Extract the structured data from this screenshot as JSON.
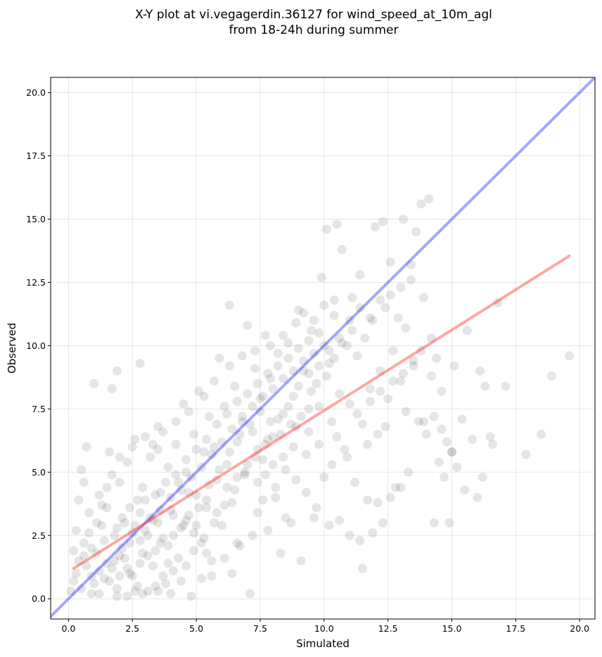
{
  "chart_data": {
    "type": "scatter",
    "title_lines": [
      "X-Y plot at vi.vegagerdin.36127 for wind_speed_at_10m_agl",
      "from 18-24h during summer"
    ],
    "xlabel": "Simulated",
    "ylabel": "Observed",
    "xlim": [
      -0.7,
      20.6
    ],
    "ylim": [
      -0.8,
      20.6
    ],
    "x_ticks": [
      0.0,
      2.5,
      5.0,
      7.5,
      10.0,
      12.5,
      15.0,
      17.5,
      20.0
    ],
    "y_ticks": [
      0.0,
      2.5,
      5.0,
      7.5,
      10.0,
      12.5,
      15.0,
      17.5,
      20.0
    ],
    "x_tick_labels": [
      "0.0",
      "2.5",
      "5.0",
      "7.5",
      "10.0",
      "12.5",
      "15.0",
      "17.5",
      "20.0"
    ],
    "y_tick_labels": [
      "0.0",
      "2.5",
      "5.0",
      "7.5",
      "10.0",
      "12.5",
      "15.0",
      "17.5",
      "20.0"
    ],
    "grid": true,
    "point_color": "#000000",
    "point_alpha": 0.1,
    "identity_line": {
      "color": "#0000ff",
      "alpha": 0.35,
      "from": [
        -0.7,
        -0.7
      ],
      "to": [
        20.6,
        20.6
      ]
    },
    "fit_line": {
      "color": "#ff0000",
      "alpha": 0.35,
      "from": [
        0.2,
        1.2
      ],
      "to": [
        19.6,
        13.55
      ]
    },
    "points": [
      [
        0.7,
        6.0
      ],
      [
        1.0,
        8.5
      ],
      [
        1.7,
        8.3
      ],
      [
        1.9,
        9.0
      ],
      [
        2.8,
        9.3
      ],
      [
        0.5,
        5.1
      ],
      [
        0.3,
        2.7
      ],
      [
        0.2,
        0.7
      ],
      [
        0.4,
        1.5
      ],
      [
        0.6,
        2.2
      ],
      [
        0.8,
        3.4
      ],
      [
        0.9,
        0.2
      ],
      [
        1.1,
        1.8
      ],
      [
        1.2,
        4.1
      ],
      [
        1.3,
        2.9
      ],
      [
        1.4,
        0.8
      ],
      [
        1.5,
        3.6
      ],
      [
        1.6,
        5.8
      ],
      [
        1.7,
        1.2
      ],
      [
        1.8,
        2.5
      ],
      [
        1.9,
        0.4
      ],
      [
        2.0,
        4.6
      ],
      [
        2.1,
        3.2
      ],
      [
        2.2,
        1.6
      ],
      [
        2.3,
        5.4
      ],
      [
        2.4,
        2.2
      ],
      [
        2.5,
        0.9
      ],
      [
        2.6,
        6.3
      ],
      [
        2.7,
        3.9
      ],
      [
        2.8,
        1.4
      ],
      [
        2.9,
        4.4
      ],
      [
        3.0,
        2.7
      ],
      [
        3.1,
        0.3
      ],
      [
        3.2,
        5.6
      ],
      [
        3.3,
        3.1
      ],
      [
        3.4,
        1.9
      ],
      [
        3.5,
        6.8
      ],
      [
        3.6,
        4.2
      ],
      [
        3.7,
        2.4
      ],
      [
        3.8,
        0.6
      ],
      [
        3.9,
        5.2
      ],
      [
        4.0,
        3.5
      ],
      [
        4.1,
        1.1
      ],
      [
        4.2,
        6.1
      ],
      [
        4.3,
        4.6
      ],
      [
        4.4,
        2.8
      ],
      [
        4.5,
        7.7
      ],
      [
        4.6,
        5.0
      ],
      [
        4.7,
        3.3
      ],
      [
        4.8,
        0.1
      ],
      [
        4.9,
        6.5
      ],
      [
        5.0,
        4.1
      ],
      [
        5.1,
        8.2
      ],
      [
        5.2,
        2.2
      ],
      [
        5.3,
        5.8
      ],
      [
        5.4,
        3.6
      ],
      [
        5.5,
        7.2
      ],
      [
        5.6,
        1.5
      ],
      [
        5.7,
        6.0
      ],
      [
        5.8,
        4.7
      ],
      [
        5.9,
        9.5
      ],
      [
        6.0,
        2.9
      ],
      [
        6.1,
        7.6
      ],
      [
        6.2,
        5.3
      ],
      [
        6.3,
        11.6
      ],
      [
        6.4,
        3.8
      ],
      [
        6.5,
        8.4
      ],
      [
        6.6,
        6.2
      ],
      [
        6.7,
        2.1
      ],
      [
        6.8,
        7.0
      ],
      [
        6.9,
        4.9
      ],
      [
        7.0,
        10.8
      ],
      [
        7.1,
        0.2
      ],
      [
        7.2,
        6.6
      ],
      [
        7.3,
        9.1
      ],
      [
        7.4,
        3.4
      ],
      [
        7.5,
        7.9
      ],
      [
        7.6,
        5.5
      ],
      [
        7.7,
        10.4
      ],
      [
        7.8,
        2.7
      ],
      [
        7.9,
        8.7
      ],
      [
        8.0,
        6.4
      ],
      [
        8.1,
        4.0
      ],
      [
        8.2,
        9.7
      ],
      [
        8.3,
        1.8
      ],
      [
        8.4,
        7.3
      ],
      [
        8.5,
        5.1
      ],
      [
        8.6,
        10.1
      ],
      [
        8.7,
        3.0
      ],
      [
        8.8,
        8.0
      ],
      [
        8.9,
        6.8
      ],
      [
        9.0,
        11.4
      ],
      [
        9.1,
        1.5
      ],
      [
        9.2,
        9.0
      ],
      [
        9.3,
        5.7
      ],
      [
        9.4,
        7.5
      ],
      [
        9.5,
        10.6
      ],
      [
        9.6,
        3.2
      ],
      [
        9.7,
        8.5
      ],
      [
        9.8,
        6.1
      ],
      [
        9.9,
        12.7
      ],
      [
        10.0,
        4.8
      ],
      [
        10.1,
        14.6
      ],
      [
        10.2,
        9.3
      ],
      [
        10.3,
        7.0
      ],
      [
        10.4,
        11.2
      ],
      [
        10.5,
        14.8
      ],
      [
        10.6,
        8.1
      ],
      [
        10.7,
        13.8
      ],
      [
        10.8,
        5.9
      ],
      [
        10.9,
        10.0
      ],
      [
        11.0,
        7.7
      ],
      [
        11.1,
        11.9
      ],
      [
        11.2,
        4.6
      ],
      [
        11.3,
        9.6
      ],
      [
        11.4,
        12.8
      ],
      [
        11.5,
        6.9
      ],
      [
        11.6,
        10.3
      ],
      [
        11.7,
        3.9
      ],
      [
        11.8,
        8.3
      ],
      [
        11.9,
        11.0
      ],
      [
        12.0,
        14.7
      ],
      [
        12.1,
        6.5
      ],
      [
        12.2,
        9.0
      ],
      [
        12.3,
        14.9
      ],
      [
        12.4,
        11.5
      ],
      [
        12.5,
        7.9
      ],
      [
        12.6,
        13.3
      ],
      [
        12.7,
        9.8
      ],
      [
        12.8,
        4.4
      ],
      [
        12.9,
        11.1
      ],
      [
        13.0,
        8.6
      ],
      [
        13.1,
        15.0
      ],
      [
        13.2,
        10.7
      ],
      [
        13.3,
        5.0
      ],
      [
        13.4,
        12.6
      ],
      [
        13.5,
        9.2
      ],
      [
        13.6,
        14.5
      ],
      [
        13.7,
        7.0
      ],
      [
        13.8,
        15.6
      ],
      [
        13.9,
        11.9
      ],
      [
        14.0,
        6.5
      ],
      [
        14.1,
        15.8
      ],
      [
        14.2,
        8.8
      ],
      [
        14.3,
        3.0
      ],
      [
        14.4,
        9.5
      ],
      [
        14.5,
        5.4
      ],
      [
        14.6,
        6.7
      ],
      [
        14.7,
        4.8
      ],
      [
        14.8,
        6.2
      ],
      [
        14.9,
        3.0
      ],
      [
        15.0,
        5.8
      ],
      [
        15.1,
        9.2
      ],
      [
        15.2,
        5.2
      ],
      [
        15.4,
        7.1
      ],
      [
        15.5,
        4.3
      ],
      [
        15.6,
        10.6
      ],
      [
        15.8,
        6.3
      ],
      [
        16.0,
        4.0
      ],
      [
        16.1,
        9.0
      ],
      [
        16.2,
        4.8
      ],
      [
        16.3,
        8.4
      ],
      [
        16.5,
        6.4
      ],
      [
        16.6,
        6.1
      ],
      [
        16.8,
        11.7
      ],
      [
        17.1,
        8.4
      ],
      [
        17.9,
        5.7
      ],
      [
        18.5,
        6.5
      ],
      [
        18.9,
        8.8
      ],
      [
        19.6,
        9.6
      ],
      [
        0.3,
        1.0
      ],
      [
        0.5,
        0.4
      ],
      [
        0.7,
        1.3
      ],
      [
        0.9,
        2.0
      ],
      [
        1.0,
        0.6
      ],
      [
        1.2,
        1.1
      ],
      [
        1.4,
        2.3
      ],
      [
        1.6,
        0.7
      ],
      [
        1.8,
        1.5
      ],
      [
        2.0,
        0.9
      ],
      [
        2.1,
        2.0
      ],
      [
        2.3,
        1.2
      ],
      [
        2.5,
        2.6
      ],
      [
        2.7,
        0.5
      ],
      [
        2.9,
        1.8
      ],
      [
        3.1,
        2.5
      ],
      [
        3.3,
        1.3
      ],
      [
        3.5,
        3.0
      ],
      [
        3.7,
        0.9
      ],
      [
        3.9,
        2.1
      ],
      [
        4.1,
        3.3
      ],
      [
        4.3,
        1.6
      ],
      [
        4.5,
        2.9
      ],
      [
        4.7,
        4.2
      ],
      [
        4.9,
        1.9
      ],
      [
        5.1,
        3.6
      ],
      [
        5.3,
        2.4
      ],
      [
        5.5,
        4.5
      ],
      [
        5.7,
        3.0
      ],
      [
        5.9,
        5.1
      ],
      [
        6.1,
        3.7
      ],
      [
        6.3,
        5.8
      ],
      [
        6.5,
        4.3
      ],
      [
        6.7,
        6.5
      ],
      [
        6.9,
        5.0
      ],
      [
        7.1,
        6.9
      ],
      [
        7.3,
        5.6
      ],
      [
        7.5,
        7.4
      ],
      [
        7.7,
        6.1
      ],
      [
        7.9,
        7.0
      ],
      [
        2.2,
        3.0
      ],
      [
        2.4,
        3.6
      ],
      [
        2.6,
        2.9
      ],
      [
        2.8,
        3.4
      ],
      [
        3.0,
        3.9
      ],
      [
        3.2,
        3.2
      ],
      [
        3.4,
        4.1
      ],
      [
        3.6,
        3.5
      ],
      [
        3.8,
        4.6
      ],
      [
        4.0,
        4.0
      ],
      [
        4.2,
        4.9
      ],
      [
        4.4,
        4.3
      ],
      [
        4.6,
        5.5
      ],
      [
        4.8,
        4.8
      ],
      [
        5.0,
        5.9
      ],
      [
        5.2,
        5.2
      ],
      [
        5.4,
        6.3
      ],
      [
        5.6,
        5.7
      ],
      [
        5.8,
        6.9
      ],
      [
        6.0,
        6.2
      ],
      [
        6.2,
        7.3
      ],
      [
        6.4,
        6.7
      ],
      [
        6.6,
        7.8
      ],
      [
        6.8,
        7.2
      ],
      [
        7.0,
        8.1
      ],
      [
        7.2,
        7.6
      ],
      [
        7.4,
        8.5
      ],
      [
        7.6,
        8.0
      ],
      [
        7.8,
        8.9
      ],
      [
        8.0,
        8.3
      ],
      [
        8.2,
        9.2
      ],
      [
        8.4,
        8.7
      ],
      [
        8.6,
        9.5
      ],
      [
        8.8,
        9.0
      ],
      [
        9.0,
        9.9
      ],
      [
        9.2,
        9.4
      ],
      [
        9.4,
        10.2
      ],
      [
        9.6,
        9.7
      ],
      [
        9.8,
        10.5
      ],
      [
        10.0,
        10.0
      ],
      [
        1.1,
        3.0
      ],
      [
        1.3,
        3.7
      ],
      [
        1.5,
        4.4
      ],
      [
        1.7,
        4.9
      ],
      [
        1.9,
        2.8
      ],
      [
        0.4,
        3.9
      ],
      [
        0.6,
        4.6
      ],
      [
        0.8,
        2.6
      ],
      [
        0.2,
        1.9
      ],
      [
        0.1,
        0.3
      ],
      [
        2.3,
        0.1
      ],
      [
        2.6,
        0.3
      ],
      [
        3.4,
        0.5
      ],
      [
        4.0,
        0.2
      ],
      [
        4.4,
        0.7
      ],
      [
        5.2,
        0.8
      ],
      [
        5.6,
        0.9
      ],
      [
        6.1,
        1.6
      ],
      [
        6.6,
        2.2
      ],
      [
        7.2,
        2.5
      ],
      [
        7.6,
        3.9
      ],
      [
        8.1,
        4.4
      ],
      [
        8.5,
        3.2
      ],
      [
        8.9,
        4.7
      ],
      [
        9.3,
        4.2
      ],
      [
        9.7,
        3.6
      ],
      [
        10.2,
        2.9
      ],
      [
        10.6,
        3.1
      ],
      [
        11.0,
        2.5
      ],
      [
        11.4,
        2.3
      ],
      [
        11.5,
        1.2
      ],
      [
        11.9,
        2.6
      ],
      [
        12.3,
        3.0
      ],
      [
        12.6,
        4.0
      ],
      [
        13.0,
        4.4
      ],
      [
        12.1,
        3.8
      ],
      [
        10.9,
        5.6
      ],
      [
        11.7,
        6.1
      ],
      [
        12.4,
        6.8
      ],
      [
        13.2,
        7.4
      ],
      [
        13.9,
        7.0
      ],
      [
        14.3,
        7.2
      ],
      [
        14.6,
        8.2
      ],
      [
        15.0,
        5.8
      ],
      [
        10.3,
        5.3
      ],
      [
        10.5,
        6.4
      ],
      [
        11.3,
        7.3
      ],
      [
        11.8,
        7.8
      ],
      [
        12.2,
        8.2
      ],
      [
        12.7,
        8.6
      ],
      [
        13.1,
        8.9
      ],
      [
        13.5,
        9.4
      ],
      [
        13.8,
        9.8
      ],
      [
        14.2,
        10.3
      ],
      [
        9.5,
        8.2
      ],
      [
        9.8,
        7.6
      ],
      [
        10.1,
        8.8
      ],
      [
        10.4,
        9.5
      ],
      [
        10.7,
        10.1
      ],
      [
        11.1,
        10.6
      ],
      [
        8.3,
        6.5
      ],
      [
        8.7,
        6.9
      ],
      [
        9.1,
        7.2
      ],
      [
        9.4,
        6.6
      ],
      [
        7.4,
        4.6
      ],
      [
        7.7,
        4.9
      ],
      [
        8.0,
        5.3
      ],
      [
        8.4,
        5.6
      ],
      [
        8.8,
        6.0
      ],
      [
        6.4,
        1.0
      ],
      [
        5.4,
        1.8
      ],
      [
        4.9,
        2.6
      ],
      [
        4.6,
        1.3
      ],
      [
        3.9,
        1.4
      ],
      [
        3.5,
        0.3
      ],
      [
        2.9,
        0.2
      ],
      [
        1.9,
        0.1
      ],
      [
        1.2,
        0.2
      ],
      [
        0.6,
        1.7
      ],
      [
        0.9,
        0.9
      ],
      [
        1.5,
        1.4
      ],
      [
        2.0,
        1.7
      ],
      [
        2.4,
        1.0
      ],
      [
        2.8,
        2.3
      ],
      [
        3.1,
        1.7
      ],
      [
        3.6,
        2.2
      ],
      [
        4.1,
        2.5
      ],
      [
        4.6,
        3.1
      ],
      [
        5.0,
        2.9
      ],
      [
        5.4,
        3.9
      ],
      [
        5.8,
        3.4
      ],
      [
        6.2,
        4.4
      ],
      [
        6.6,
        4.8
      ],
      [
        7.0,
        5.3
      ],
      [
        7.4,
        5.9
      ],
      [
        7.8,
        6.3
      ],
      [
        8.2,
        7.1
      ],
      [
        8.6,
        7.6
      ],
      [
        9.0,
        8.4
      ],
      [
        9.4,
        8.9
      ],
      [
        9.8,
        9.2
      ],
      [
        10.2,
        9.8
      ],
      [
        10.6,
        10.3
      ],
      [
        11.0,
        11.0
      ],
      [
        11.4,
        11.5
      ],
      [
        11.8,
        11.1
      ],
      [
        12.2,
        11.8
      ],
      [
        12.6,
        12.0
      ],
      [
        13.0,
        12.3
      ],
      [
        13.4,
        13.2
      ],
      [
        3.3,
        6.1
      ],
      [
        3.7,
        6.6
      ],
      [
        4.2,
        7.0
      ],
      [
        4.7,
        7.4
      ],
      [
        5.3,
        8.0
      ],
      [
        5.7,
        8.6
      ],
      [
        6.3,
        9.2
      ],
      [
        6.8,
        9.6
      ],
      [
        7.3,
        9.8
      ],
      [
        7.9,
        10.0
      ],
      [
        8.4,
        10.4
      ],
      [
        8.9,
        10.9
      ],
      [
        9.2,
        11.3
      ],
      [
        9.6,
        11.0
      ],
      [
        10.0,
        11.6
      ],
      [
        10.4,
        11.8
      ],
      [
        2.0,
        5.6
      ],
      [
        2.5,
        6.0
      ],
      [
        3.0,
        6.4
      ],
      [
        3.5,
        5.9
      ]
    ]
  }
}
